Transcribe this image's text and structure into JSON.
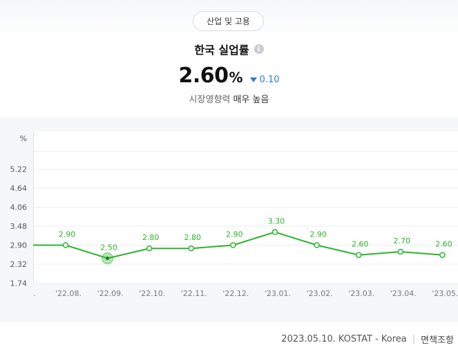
{
  "category_chip": "산업 및 고용",
  "title": "한국 실업률",
  "info_icon": "info-icon",
  "current_value": "2.60",
  "unit": "%",
  "change_value": "0.10",
  "change_direction": "down",
  "impact": {
    "prefix": "시장영향력",
    "level": "매우 높음"
  },
  "footer": {
    "date": "2023.05.10.",
    "source": "KOSTAT",
    "country": "Korea",
    "disclaimer": "면책조항"
  },
  "colors": {
    "line": "#2bb52b",
    "label": "#2bb52b",
    "down": "#2f7bd8",
    "chart_bg": "#f6f7f9"
  },
  "chart_data": {
    "type": "line",
    "ylabel": "%",
    "yticks": [
      "5.22",
      "4.64",
      "4.06",
      "3.48",
      "2.90",
      "2.32",
      "1.74"
    ],
    "ylim": [
      1.74,
      5.22
    ],
    "grid": true,
    "partial_left_label": ".",
    "partial_left_value": 2.9,
    "categories": [
      "'22.08.",
      "'22.09.",
      "'22.10.",
      "'22.11.",
      "'22.12.",
      "'23.01.",
      "'23.02.",
      "'23.03.",
      "'23.04.",
      "'23.05."
    ],
    "values": [
      2.9,
      2.5,
      2.8,
      2.8,
      2.9,
      3.3,
      2.9,
      2.6,
      2.7,
      2.6
    ],
    "data_labels": [
      "2.90",
      "2.50",
      "2.80",
      "2.80",
      "2.90",
      "3.30",
      "2.90",
      "2.60",
      "2.70",
      "2.60"
    ],
    "highlighted_index": 1
  }
}
